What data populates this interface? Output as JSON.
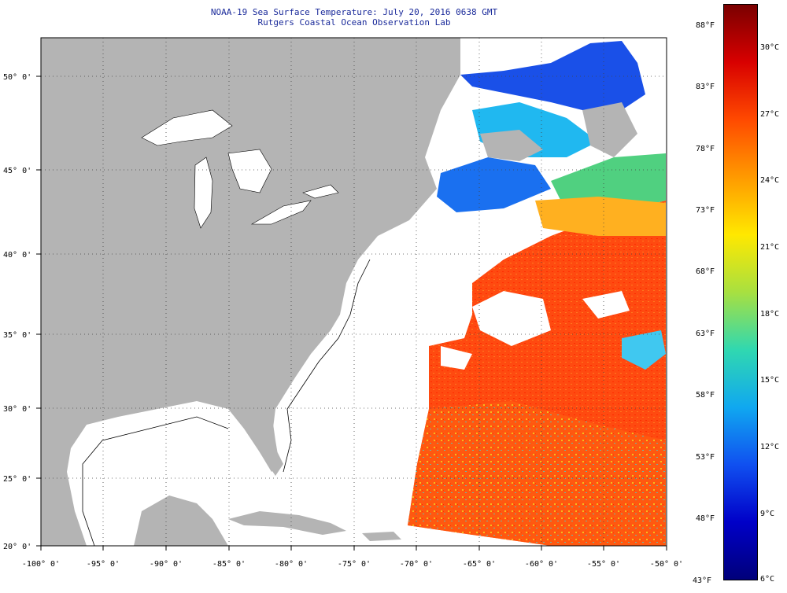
{
  "title": {
    "line1": "NOAA-19 Sea Surface Temperature:  July 20, 2016 0638 GMT",
    "line2": "Rutgers Coastal Ocean Observation Lab"
  },
  "axes": {
    "lat_labels": [
      "50° 0'",
      "45° 0'",
      "40° 0'",
      "35° 0'",
      "30° 0'",
      "25° 0'",
      "20° 0'"
    ],
    "lon_labels": [
      "-100° 0'",
      "-95° 0'",
      "-90° 0'",
      "-85° 0'",
      "-80° 0'",
      "-75° 0'",
      "-70° 0'",
      "-65° 0'",
      "-60° 0'",
      "-55° 0'",
      "-50° 0'"
    ]
  },
  "colorbar": {
    "fahrenheit_labels": [
      "88°F",
      "83°F",
      "78°F",
      "73°F",
      "68°F",
      "63°F",
      "58°F",
      "53°F",
      "48°F",
      "43°F"
    ],
    "celsius_labels": [
      "30°C",
      "27°C",
      "24°C",
      "21°C",
      "18°C",
      "15°C",
      "12°C",
      "9°C",
      "6°C"
    ],
    "colors": [
      "#7a0000",
      "#d80000",
      "#ff4a00",
      "#ff9a00",
      "#ffe800",
      "#a8e040",
      "#30d8b0",
      "#10a8f0",
      "#1050f0",
      "#0000c8",
      "#00007a"
    ]
  },
  "map_colors": {
    "land": "#b4b4b4",
    "cloud_mask": "#ffffff",
    "warm_water": "#ff4a10",
    "cool_water": "#1a78ff"
  }
}
